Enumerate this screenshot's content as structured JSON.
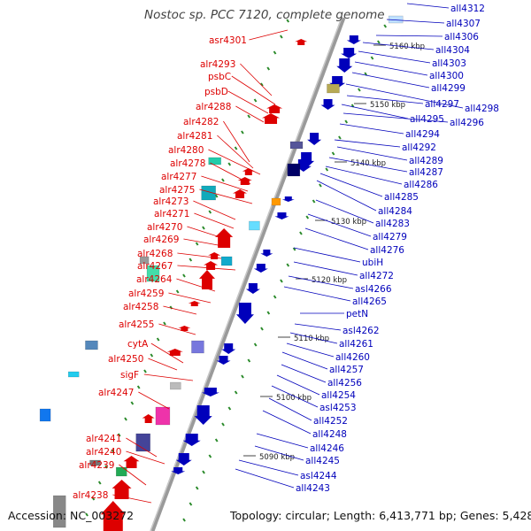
{
  "title": "Nostoc sp. PCC 7120, complete genome",
  "footer": {
    "accession": "Accession: NC_003272",
    "topology": "Topology: circular; Length: 6,413,771 bp; Genes: 5,428"
  },
  "colors": {
    "forward_strand": "#dd0000",
    "reverse_strand": "#0000bb",
    "backbone": "#888888",
    "tick": "#2a8a2a"
  },
  "kbp_markers": [
    "5160 kbp",
    "5150 kbp",
    "5140 kbp",
    "5130 kbp",
    "5120 kbp",
    "5110 kbp",
    "5100 kbp",
    "5090 kbp"
  ],
  "forward_genes": [
    "asr4301",
    "alr4293",
    "psbC",
    "psbD",
    "alr4288",
    "alr4282",
    "alr4281",
    "alr4280",
    "alr4278",
    "alr4277",
    "alr4275",
    "alr4273",
    "alr4271",
    "alr4270",
    "alr4269",
    "alr4268",
    "alr4267",
    "alr4264",
    "alr4259",
    "alr4258",
    "alr4255",
    "cytA",
    "alr4250",
    "sigF",
    "alr4247",
    "alr4241",
    "alr4240",
    "alr4239",
    "alr4238"
  ],
  "reverse_genes": [
    "all4312",
    "all4307",
    "all4306",
    "all4304",
    "all4303",
    "all4300",
    "all4299",
    "all4298",
    "all4297",
    "all4295",
    "all4296",
    "all4294",
    "all4292",
    "all4289",
    "all4287",
    "all4286",
    "all4285",
    "all4284",
    "all4283",
    "all4279",
    "all4276",
    "ubiH",
    "all4272",
    "asl4266",
    "all4265",
    "petN",
    "asl4262",
    "all4261",
    "all4260",
    "all4257",
    "all4256",
    "all4254",
    "asl4253",
    "all4252",
    "all4248",
    "all4246",
    "all4245",
    "asl4244",
    "all4243"
  ]
}
